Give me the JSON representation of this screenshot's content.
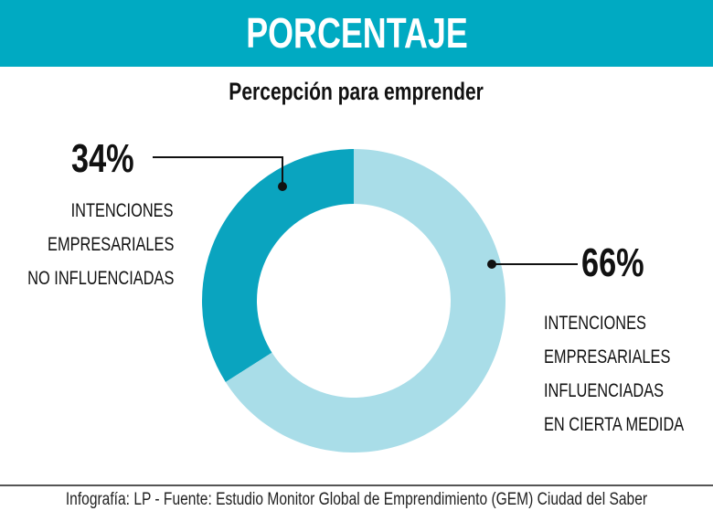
{
  "header": {
    "title": "PORCENTAJE"
  },
  "chart_data": {
    "type": "pie",
    "variant": "donut",
    "title": "Percepción para emprender",
    "slices": [
      {
        "label_pct": "34%",
        "value": 34,
        "label_lines": [
          "INTENCIONES",
          "EMPRESARIALES",
          "NO INFLUENCIADAS"
        ],
        "color": "#0aa4bf"
      },
      {
        "label_pct": "66%",
        "value": 66,
        "label_lines": [
          "INTENCIONES",
          "EMPRESARIALES",
          "INFLUENCIADAS",
          "EN CIERTA MEDIDA"
        ],
        "color": "#a9dde8"
      }
    ]
  },
  "footer": {
    "credit": "Infografía: LP - Fuente: Estudio Monitor Global de Emprendimiento (GEM) Ciudad del Saber"
  }
}
